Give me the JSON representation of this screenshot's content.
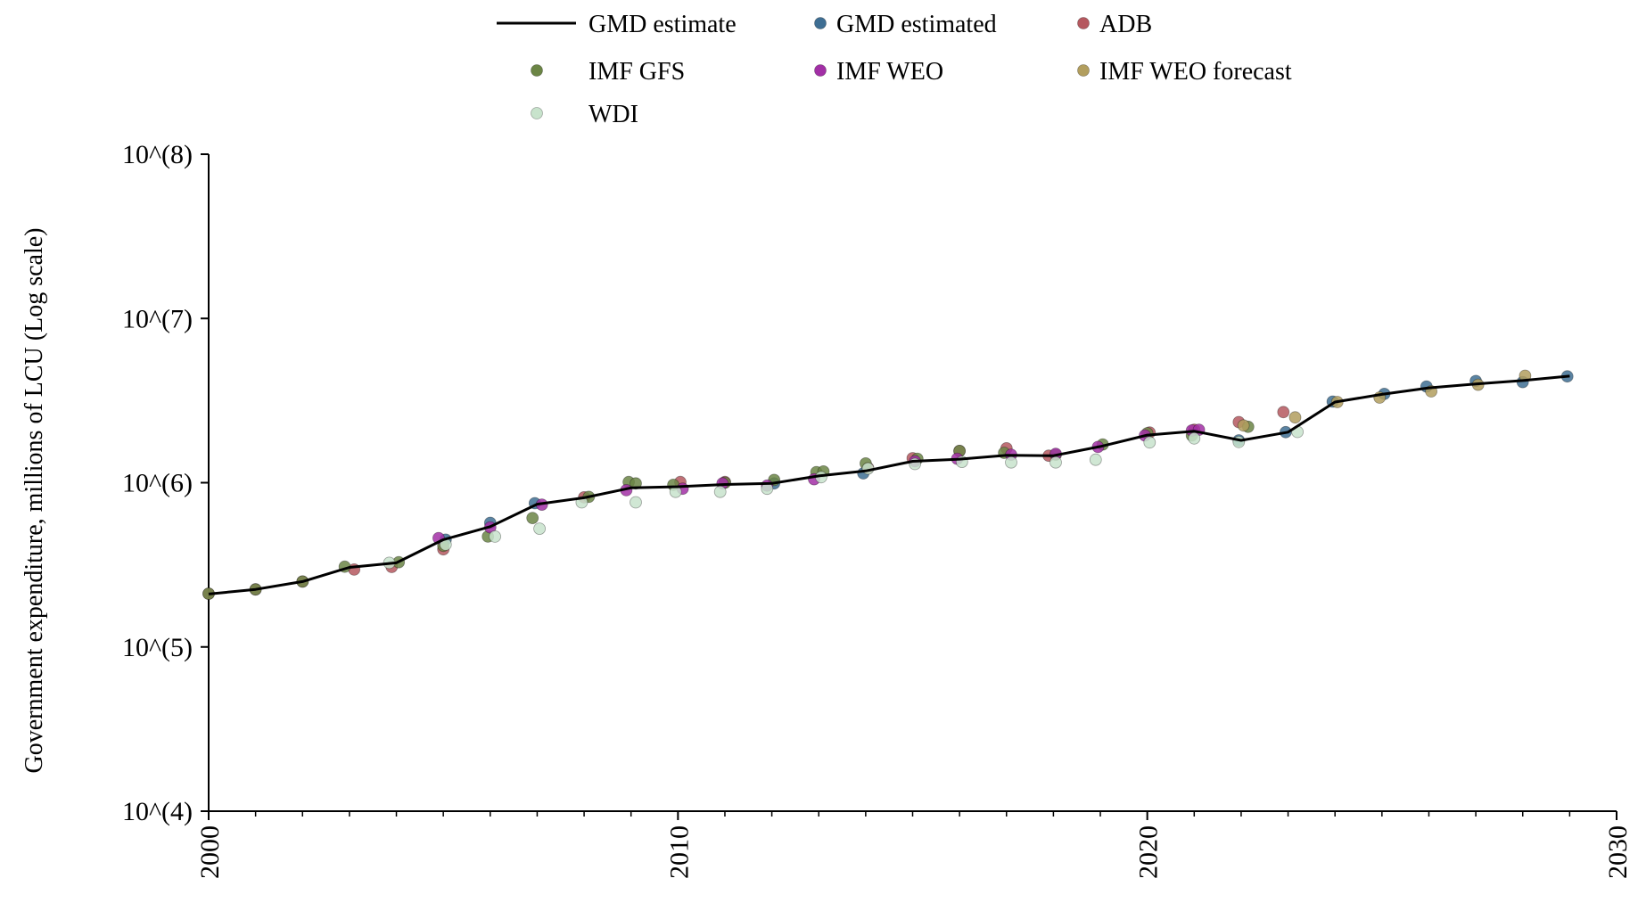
{
  "chart_data": {
    "type": "line",
    "title": "",
    "xlabel": "",
    "ylabel": "Government expenditure, millions of LCU (Log scale)",
    "xlim": [
      2000,
      2030
    ],
    "ylim": [
      10000,
      100000000
    ],
    "y_scale": "log",
    "grid": false,
    "legend_position": "top",
    "x_tick_labels": [
      "2000",
      "2010",
      "2020",
      "2030"
    ],
    "x_ticks": [
      2000,
      2010,
      2020,
      2030
    ],
    "y_tick_labels": [
      "10^(4)",
      "10^(5)",
      "10^(6)",
      "10^(7)",
      "10^(8)"
    ],
    "y_ticks": [
      10000,
      100000,
      1000000,
      10000000,
      100000000
    ],
    "series": [
      {
        "name": "GMD estimate",
        "kind": "line",
        "color": "#000000",
        "x": [
          2000,
          2001,
          2002,
          2003,
          2004,
          2005,
          2006,
          2007,
          2008,
          2009,
          2010,
          2011,
          2012,
          2013,
          2014,
          2015,
          2016,
          2017,
          2018,
          2019,
          2020,
          2021,
          2022,
          2023,
          2024,
          2025,
          2026,
          2027,
          2028,
          2029
        ],
        "y": [
          210000,
          224000,
          250000,
          305000,
          325000,
          450000,
          540000,
          740000,
          810000,
          930000,
          945000,
          975000,
          990000,
          1100000,
          1180000,
          1350000,
          1390000,
          1470000,
          1460000,
          1660000,
          1950000,
          2060000,
          1810000,
          2030000,
          3100000,
          3450000,
          3780000,
          3990000,
          4190000,
          4460000
        ]
      },
      {
        "name": "GMD estimated",
        "kind": "scatter",
        "color": "#3e6e93",
        "x": [
          2005.05,
          2006.0,
          2006.95,
          2012.05,
          2013.95,
          2021.95,
          2022.95,
          2023.95,
          2025.05,
          2025.95,
          2027.0,
          2028.0,
          2028.95
        ],
        "y": [
          450000,
          570000,
          750000,
          990000,
          1140000,
          1810000,
          2030000,
          3120000,
          3470000,
          3850000,
          4160000,
          4100000,
          4440000
        ]
      },
      {
        "name": "ADB",
        "kind": "scatter",
        "color": "#b5585f",
        "x": [
          2000.0,
          2001.0,
          2002.0,
          2003.1,
          2003.9,
          2005.0,
          2008.0,
          2010.05,
          2011.0,
          2014.05,
          2015.0,
          2016.0,
          2017.0,
          2017.9,
          2020.05,
          2021.0,
          2021.95,
          2022.9
        ],
        "y": [
          211000,
          224000,
          250000,
          296000,
          307000,
          393000,
          815000,
          1010000,
          1010000,
          1230000,
          1410000,
          1560000,
          1620000,
          1460000,
          2020000,
          2100000,
          2340000,
          2690000
        ]
      },
      {
        "name": "IMF GFS",
        "kind": "scatter",
        "color": "#6b8545",
        "x": [
          2000.0,
          2001.0,
          2002.0,
          2002.9,
          2004.05,
          2005.0,
          2005.95,
          2006.9,
          2008.1,
          2008.95,
          2009.1,
          2009.9,
          2011.0,
          2012.05,
          2012.95,
          2013.1,
          2014.0,
          2015.1,
          2016.0,
          2016.95,
          2018.05,
          2019.05,
          2020.0,
          2020.95,
          2022.15
        ],
        "y": [
          211000,
          224000,
          250000,
          308000,
          328000,
          413000,
          470000,
          610000,
          820000,
          1010000,
          990000,
          970000,
          1000000,
          1040000,
          1160000,
          1170000,
          1310000,
          1400000,
          1560000,
          1520000,
          1480000,
          1710000,
          2000000,
          1940000,
          2190000
        ]
      },
      {
        "name": "IMF WEO",
        "kind": "scatter",
        "color": "#a22fa6",
        "x": [
          2004.9,
          2006.0,
          2007.1,
          2008.9,
          2010.1,
          2010.95,
          2011.9,
          2012.9,
          2015.05,
          2015.95,
          2017.1,
          2018.05,
          2018.95,
          2019.95,
          2020.95,
          2021.1
        ],
        "y": [
          460000,
          535000,
          735000,
          900000,
          920000,
          990000,
          960000,
          1050000,
          1350000,
          1400000,
          1480000,
          1500000,
          1650000,
          1940000,
          2080000,
          2100000
        ]
      },
      {
        "name": "IMF WEO forecast",
        "kind": "scatter",
        "color": "#b29e5e",
        "x": [
          2022.05,
          2023.15,
          2024.05,
          2024.95,
          2026.05,
          2027.05,
          2028.05
        ],
        "y": [
          2230000,
          2500000,
          3100000,
          3300000,
          3600000,
          3950000,
          4480000
        ]
      },
      {
        "name": "WDI",
        "kind": "scatter",
        "color": "#c8e3cc",
        "x": [
          2003.85,
          2005.05,
          2006.1,
          2007.05,
          2007.95,
          2009.1,
          2009.95,
          2010.9,
          2011.9,
          2013.05,
          2014.05,
          2015.05,
          2016.05,
          2017.1,
          2018.05,
          2018.9,
          2020.05,
          2021.0,
          2021.95,
          2023.2
        ],
        "y": [
          325000,
          420000,
          470000,
          525000,
          760000,
          760000,
          880000,
          880000,
          920000,
          1080000,
          1220000,
          1300000,
          1340000,
          1330000,
          1330000,
          1380000,
          1760000,
          1860000,
          1770000,
          2040000
        ]
      }
    ]
  }
}
